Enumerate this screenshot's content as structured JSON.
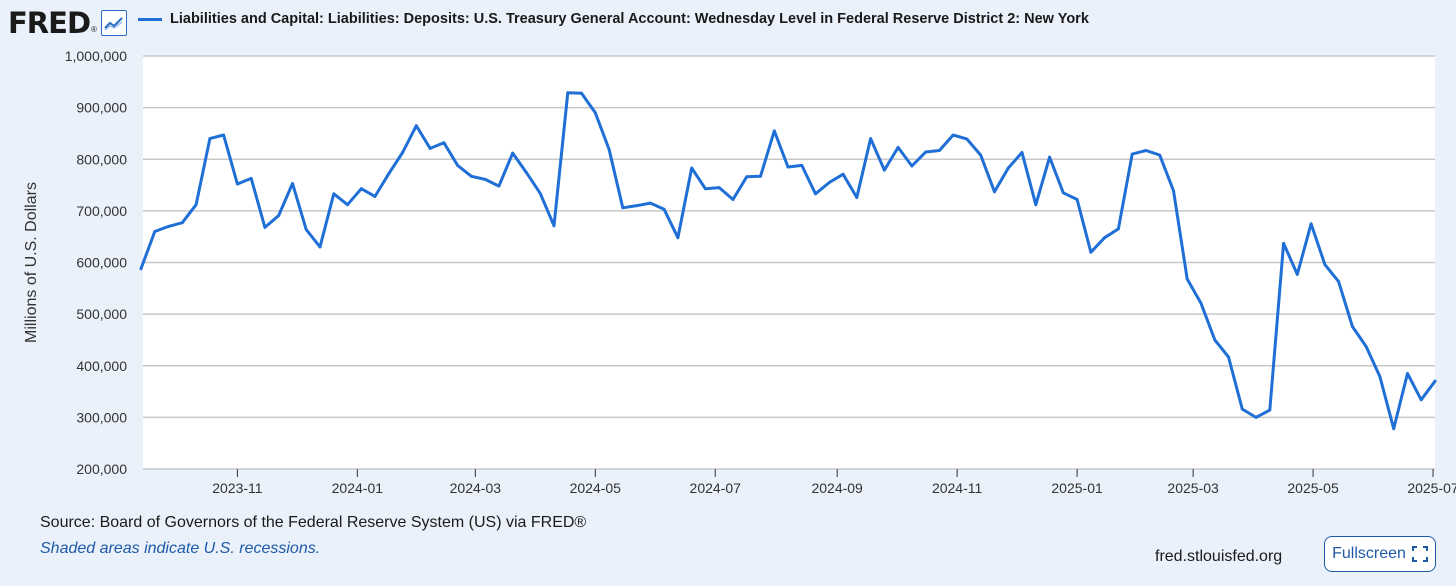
{
  "brand": {
    "name": "FRED",
    "reg": "®",
    "icon": "line-chart-icon"
  },
  "footer": {
    "source": "Source: Board of Governors of the Federal Reserve System (US) via FRED®",
    "note": "Shaded areas indicate U.S. recessions.",
    "site": "fred.stlouisfed.org",
    "fullscreen_label": "Fullscreen",
    "fullscreen_icon": "expand-icon"
  },
  "colors": {
    "series": "#1f6fd6",
    "grid": "#c8c8c8",
    "background": "#eaf1fa",
    "plot": "#ffffff"
  },
  "chart_data": {
    "type": "line",
    "title": "",
    "ylabel": "Millions of U.S. Dollars",
    "xlabel": "",
    "ylim": [
      200000,
      1000000
    ],
    "xlim": [
      "2023-09-14",
      "2025-07-02"
    ],
    "grid": true,
    "legend_position": "top",
    "yticks": [
      "1,000,000",
      "900,000",
      "800,000",
      "700,000",
      "600,000",
      "500,000",
      "400,000",
      "300,000",
      "200,000"
    ],
    "yticks_values": [
      1000000,
      900000,
      800000,
      700000,
      600000,
      500000,
      400000,
      300000,
      200000
    ],
    "xticks": [
      {
        "label": "2023-11",
        "date": "2023-11-01"
      },
      {
        "label": "2024-01",
        "date": "2024-01-01"
      },
      {
        "label": "2024-03",
        "date": "2024-03-01"
      },
      {
        "label": "2024-05",
        "date": "2024-05-01"
      },
      {
        "label": "2024-07",
        "date": "2024-07-01"
      },
      {
        "label": "2024-09",
        "date": "2024-09-01"
      },
      {
        "label": "2024-11",
        "date": "2024-11-01"
      },
      {
        "label": "2025-01",
        "date": "2025-01-01"
      },
      {
        "label": "2025-03",
        "date": "2025-03-01"
      },
      {
        "label": "2025-05",
        "date": "2025-05-01"
      },
      {
        "label": "2025-07",
        "date": "2025-07-01"
      }
    ],
    "series": [
      {
        "name": "Liabilities and Capital: Liabilities: Deposits: U.S. Treasury General Account: Wednesday Level in Federal Reserve District 2: New York",
        "color": "#1f6fd6",
        "points": [
          [
            "2023-09-13",
            588000
          ],
          [
            "2023-09-20",
            660000
          ],
          [
            "2023-09-27",
            670000
          ],
          [
            "2023-10-04",
            677000
          ],
          [
            "2023-10-11",
            712000
          ],
          [
            "2023-10-18",
            840000
          ],
          [
            "2023-10-25",
            847000
          ],
          [
            "2023-11-01",
            752000
          ],
          [
            "2023-11-08",
            763000
          ],
          [
            "2023-11-15",
            668000
          ],
          [
            "2023-11-22",
            691000
          ],
          [
            "2023-11-29",
            753000
          ],
          [
            "2023-12-06",
            664000
          ],
          [
            "2023-12-13",
            630000
          ],
          [
            "2023-12-20",
            733000
          ],
          [
            "2023-12-27",
            712000
          ],
          [
            "2024-01-03",
            743000
          ],
          [
            "2024-01-10",
            728000
          ],
          [
            "2024-01-17",
            772000
          ],
          [
            "2024-01-24",
            813000
          ],
          [
            "2024-01-31",
            865000
          ],
          [
            "2024-02-07",
            821000
          ],
          [
            "2024-02-14",
            832000
          ],
          [
            "2024-02-21",
            788000
          ],
          [
            "2024-02-28",
            767000
          ],
          [
            "2024-03-06",
            761000
          ],
          [
            "2024-03-13",
            748000
          ],
          [
            "2024-03-20",
            812000
          ],
          [
            "2024-03-27",
            774000
          ],
          [
            "2024-04-03",
            734000
          ],
          [
            "2024-04-10",
            671000
          ],
          [
            "2024-04-17",
            929000
          ],
          [
            "2024-04-24",
            928000
          ],
          [
            "2024-05-01",
            890000
          ],
          [
            "2024-05-08",
            819000
          ],
          [
            "2024-05-15",
            706000
          ],
          [
            "2024-05-22",
            710000
          ],
          [
            "2024-05-29",
            715000
          ],
          [
            "2024-06-05",
            703000
          ],
          [
            "2024-06-12",
            648000
          ],
          [
            "2024-06-19",
            783000
          ],
          [
            "2024-06-26",
            743000
          ],
          [
            "2024-07-03",
            745000
          ],
          [
            "2024-07-10",
            722000
          ],
          [
            "2024-07-17",
            766000
          ],
          [
            "2024-07-24",
            767000
          ],
          [
            "2024-07-31",
            855000
          ],
          [
            "2024-08-07",
            785000
          ],
          [
            "2024-08-14",
            788000
          ],
          [
            "2024-08-21",
            733000
          ],
          [
            "2024-08-28",
            755000
          ],
          [
            "2024-09-04",
            771000
          ],
          [
            "2024-09-11",
            726000
          ],
          [
            "2024-09-18",
            840000
          ],
          [
            "2024-09-25",
            779000
          ],
          [
            "2024-10-02",
            823000
          ],
          [
            "2024-10-09",
            787000
          ],
          [
            "2024-10-16",
            814000
          ],
          [
            "2024-10-23",
            817000
          ],
          [
            "2024-10-30",
            847000
          ],
          [
            "2024-11-06",
            839000
          ],
          [
            "2024-11-13",
            808000
          ],
          [
            "2024-11-20",
            737000
          ],
          [
            "2024-11-27",
            783000
          ],
          [
            "2024-12-04",
            813000
          ],
          [
            "2024-12-11",
            712000
          ],
          [
            "2024-12-18",
            804000
          ],
          [
            "2024-12-25",
            735000
          ],
          [
            "2025-01-01",
            722000
          ],
          [
            "2025-01-08",
            620000
          ],
          [
            "2025-01-15",
            648000
          ],
          [
            "2025-01-22",
            665000
          ],
          [
            "2025-01-29",
            810000
          ],
          [
            "2025-02-05",
            817000
          ],
          [
            "2025-02-12",
            808000
          ],
          [
            "2025-02-19",
            739000
          ],
          [
            "2025-02-26",
            568000
          ],
          [
            "2025-03-05",
            521000
          ],
          [
            "2025-03-12",
            450000
          ],
          [
            "2025-03-19",
            417000
          ],
          [
            "2025-03-26",
            316000
          ],
          [
            "2025-04-02",
            300000
          ],
          [
            "2025-04-09",
            314000
          ],
          [
            "2025-04-16",
            637000
          ],
          [
            "2025-04-23",
            577000
          ],
          [
            "2025-04-30",
            675000
          ],
          [
            "2025-05-07",
            596000
          ],
          [
            "2025-05-14",
            563000
          ],
          [
            "2025-05-21",
            476000
          ],
          [
            "2025-05-28",
            437000
          ],
          [
            "2025-06-04",
            379000
          ],
          [
            "2025-06-11",
            278000
          ],
          [
            "2025-06-18",
            385000
          ],
          [
            "2025-06-25",
            334000
          ],
          [
            "2025-07-02",
            370000
          ]
        ]
      }
    ]
  }
}
